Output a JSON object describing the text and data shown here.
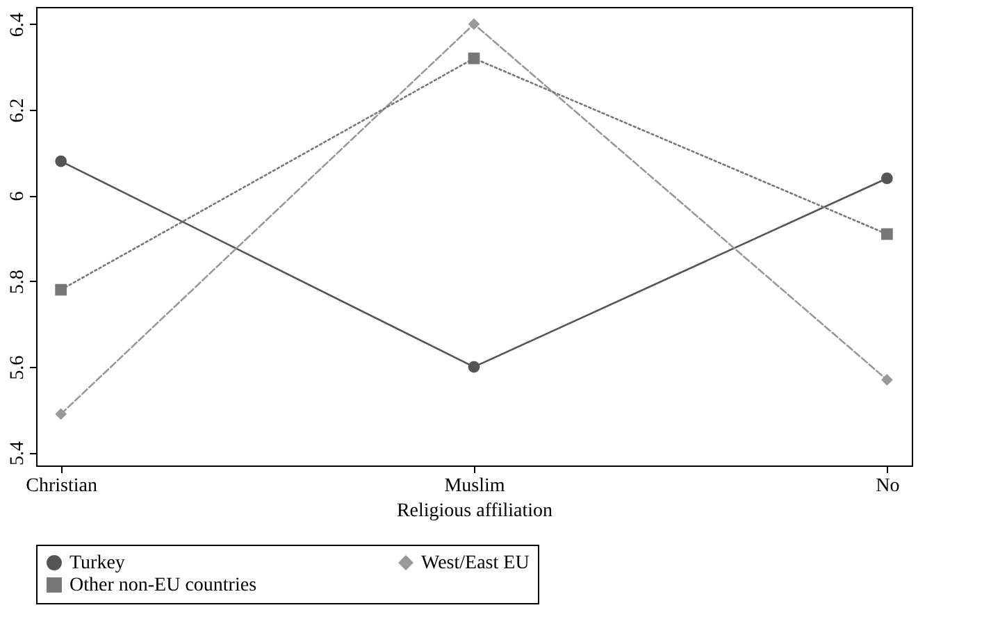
{
  "chart_data": {
    "type": "line",
    "xlabel": "Religious affiliation",
    "categories": [
      "Christian",
      "Muslim",
      "No"
    ],
    "series": [
      {
        "name": "Turkey",
        "color": "#555555",
        "marker": "circle",
        "line_style": "solid",
        "values": [
          6.08,
          5.6,
          6.04
        ]
      },
      {
        "name": "West/East EU",
        "color": "#999999",
        "marker": "diamond",
        "line_style": "dashed",
        "values": [
          5.49,
          6.4,
          5.57
        ]
      },
      {
        "name": "Other non-EU countries",
        "color": "#777777",
        "marker": "square",
        "line_style": "dotted",
        "values": [
          5.78,
          6.32,
          5.91
        ]
      }
    ],
    "ylim": [
      5.37,
      6.44
    ],
    "yticks": [
      5.4,
      5.6,
      5.8,
      6,
      6.2,
      6.4
    ],
    "grid": false,
    "legend": "bottom"
  }
}
